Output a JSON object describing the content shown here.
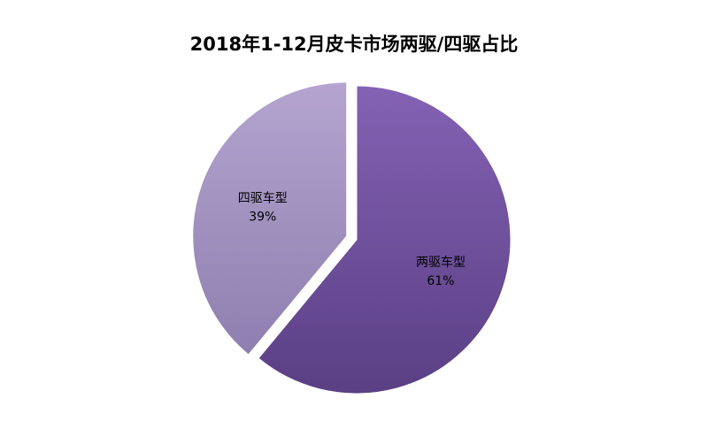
{
  "chart_data": {
    "type": "pie",
    "title": "2018年1-12月皮卡市场两驱/四驱占比",
    "categories": [
      "两驱车型",
      "四驱车型"
    ],
    "values": [
      61,
      39
    ],
    "value_labels": [
      "61%",
      "39%"
    ],
    "colors": [
      "#7a5aa8",
      "#a898c4"
    ],
    "exploded": "四驱车型",
    "legend": "none"
  }
}
